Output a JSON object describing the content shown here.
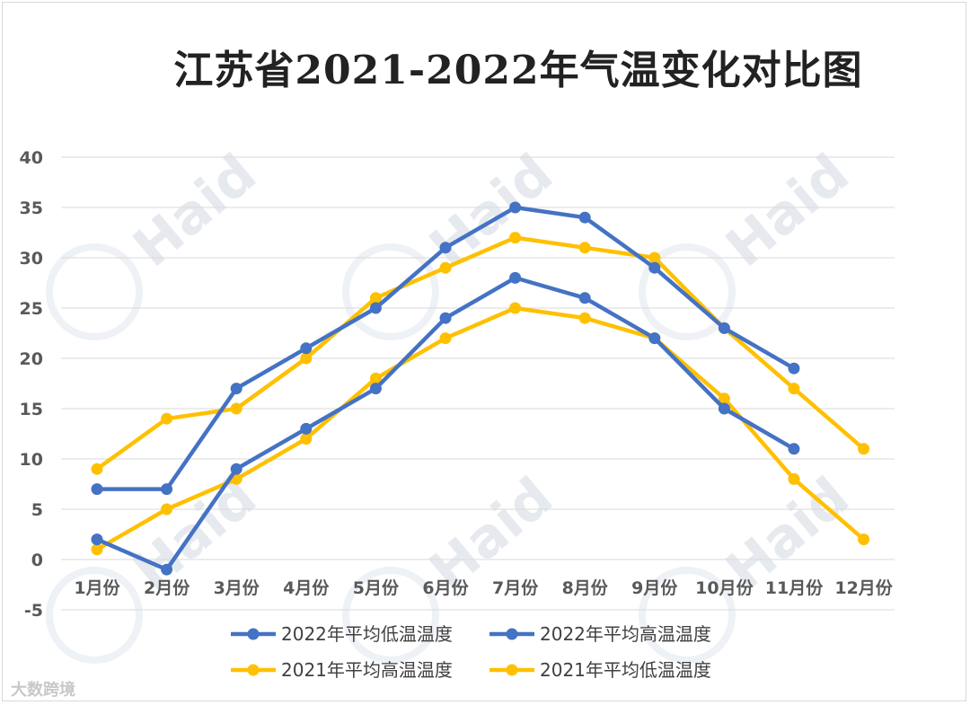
{
  "chart_data": {
    "type": "line",
    "title": "江苏省2021-2022年气温变化对比图",
    "categories": [
      "1月份",
      "2月份",
      "3月份",
      "4月份",
      "5月份",
      "6月份",
      "7月份",
      "8月份",
      "9月份",
      "10月份",
      "11月份",
      "12月份"
    ],
    "yticks": [
      "40",
      "35",
      "30",
      "25",
      "20",
      "15",
      "10",
      "5",
      "0",
      "-5"
    ],
    "ylim": [
      -5,
      40
    ],
    "grid": true,
    "legend_position": "bottom",
    "series": [
      {
        "name": "2022年平均低温温度",
        "color": "#4472c4",
        "values": [
          2,
          -1,
          9,
          13,
          17,
          24,
          28,
          26,
          22,
          15,
          11,
          null
        ]
      },
      {
        "name": "2022年平均高温温度",
        "color": "#4472c4",
        "values": [
          7,
          7,
          17,
          21,
          25,
          31,
          35,
          34,
          29,
          23,
          19,
          null
        ]
      },
      {
        "name": "2021年平均高温温度",
        "color": "#ffc000",
        "values": [
          9,
          14,
          15,
          20,
          26,
          29,
          32,
          31,
          30,
          23,
          17,
          11
        ]
      },
      {
        "name": "2021年平均低温温度",
        "color": "#ffc000",
        "values": [
          1,
          5,
          8,
          12,
          18,
          22,
          25,
          24,
          22,
          16,
          8,
          2
        ]
      }
    ]
  },
  "watermark": "Haid",
  "source_mark": "大数跨境"
}
